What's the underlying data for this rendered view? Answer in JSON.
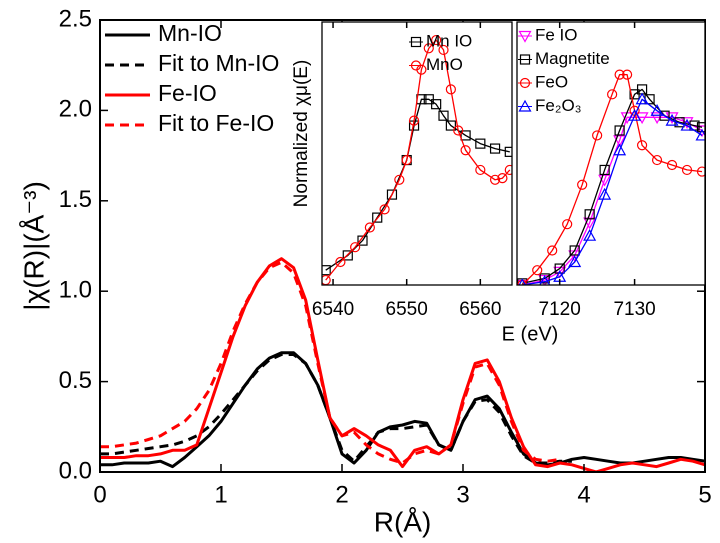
{
  "chart_data": [
    {
      "type": "line",
      "xlabel": "R(Å)",
      "ylabel": "|χ(R)|(Å⁻³)",
      "xlim": [
        0,
        5
      ],
      "xticks": [
        0,
        1,
        2,
        3,
        4,
        5
      ],
      "ylim": [
        0,
        2.5
      ],
      "yticks": [
        {
          "value": 0,
          "label": "0.0"
        },
        {
          "value": 0.5,
          "label": "0.5"
        },
        {
          "value": 1,
          "label": "1.0"
        },
        {
          "value": 1.5,
          "label": "1.5"
        },
        {
          "value": 2,
          "label": "2.0"
        },
        {
          "value": 2.5,
          "label": "2.5"
        }
      ],
      "legend": "upper-left",
      "x": [
        0,
        0.1,
        0.2,
        0.3,
        0.4,
        0.5,
        0.6,
        0.7,
        0.8,
        0.9,
        1,
        1.1,
        1.2,
        1.3,
        1.4,
        1.5,
        1.6,
        1.7,
        1.8,
        1.9,
        2,
        2.1,
        2.2,
        2.3,
        2.4,
        2.5,
        2.6,
        2.7,
        2.8,
        2.9,
        3,
        3.1,
        3.2,
        3.3,
        3.4,
        3.5,
        3.6,
        3.7,
        3.8,
        3.9,
        4,
        4.1,
        4.2,
        4.3,
        4.4,
        4.5,
        4.6,
        4.7,
        4.8,
        4.9,
        5
      ],
      "series": [
        {
          "name": "Mn-IO",
          "color": "#000000",
          "dash": false,
          "values": [
            0.04,
            0.04,
            0.05,
            0.05,
            0.05,
            0.06,
            0.03,
            0.08,
            0.14,
            0.2,
            0.28,
            0.38,
            0.48,
            0.57,
            0.63,
            0.66,
            0.66,
            0.6,
            0.48,
            0.3,
            0.1,
            0.05,
            0.12,
            0.22,
            0.25,
            0.26,
            0.28,
            0.27,
            0.15,
            0.12,
            0.28,
            0.4,
            0.42,
            0.35,
            0.22,
            0.1,
            0.05,
            0.04,
            0.05,
            0.07,
            0.08,
            0.07,
            0.06,
            0.05,
            0.05,
            0.06,
            0.07,
            0.08,
            0.08,
            0.07,
            0.06
          ]
        },
        {
          "name": "Fit to Mn-IO",
          "color": "#000000",
          "dash": true,
          "values": [
            0.1,
            0.1,
            0.11,
            0.12,
            0.13,
            0.14,
            0.15,
            0.17,
            0.2,
            0.25,
            0.32,
            0.4,
            0.48,
            0.56,
            0.62,
            0.65,
            0.65,
            0.6,
            0.48,
            0.3,
            0.12,
            0.06,
            0.14,
            0.22,
            0.24,
            0.24,
            0.25,
            0.26,
            0.15,
            0.12,
            0.28,
            0.39,
            0.4,
            0.33,
            0.2,
            0.09,
            0.05,
            0.05,
            0.06,
            0.06,
            null,
            null,
            null,
            null,
            null,
            null,
            null,
            null,
            null,
            null,
            null
          ]
        },
        {
          "name": "Fe-IO",
          "color": "#ff0000",
          "dash": false,
          "values": [
            0.08,
            0.08,
            0.08,
            0.09,
            0.09,
            0.1,
            0.12,
            0.12,
            0.15,
            0.35,
            0.55,
            0.75,
            0.92,
            1.05,
            1.14,
            1.18,
            1.13,
            0.95,
            0.62,
            0.3,
            0.2,
            0.24,
            0.2,
            0.15,
            0.12,
            0.03,
            0.12,
            0.14,
            0.1,
            0.15,
            0.4,
            0.6,
            0.62,
            0.5,
            0.3,
            0.14,
            0.04,
            0.03,
            0.05,
            0.04,
            0.02,
            0,
            0.02,
            0.04,
            0.05,
            0.04,
            0.03,
            0.05,
            0.07,
            0.06,
            0.04
          ]
        },
        {
          "name": "Fit to Fe-IO",
          "color": "#ff0000",
          "dash": true,
          "values": [
            0.14,
            0.14,
            0.15,
            0.16,
            0.18,
            0.2,
            0.24,
            0.28,
            0.35,
            0.45,
            0.6,
            0.78,
            0.93,
            1.05,
            1.13,
            1.16,
            1.1,
            0.92,
            0.6,
            0.3,
            0.2,
            0.22,
            0.15,
            0.1,
            0.07,
            0.05,
            0.1,
            0.12,
            0.1,
            0.15,
            0.38,
            0.58,
            0.6,
            0.48,
            0.28,
            0.12,
            0.07,
            0.06,
            0.07,
            null,
            null,
            null,
            null,
            null,
            null,
            null,
            null,
            null,
            null,
            null,
            null
          ]
        }
      ]
    },
    {
      "type": "line",
      "xlabel": "E (eV)",
      "ylabel": "Normalized χμ(E)",
      "xlim": [
        6538.5,
        6564.3
      ],
      "xticks": [
        6540,
        6550,
        6560
      ],
      "ylim": [
        0,
        1.6
      ],
      "legend": "upper-right",
      "series": [
        {
          "name": "Mn IO",
          "color": "#000000",
          "marker": "square",
          "x": [
            6539,
            6542,
            6544,
            6546,
            6548,
            6550,
            6551,
            6552,
            6553,
            6554,
            6555,
            6556,
            6558,
            6560,
            6562,
            6564
          ],
          "values": [
            0.09,
            0.18,
            0.27,
            0.41,
            0.55,
            0.76,
            0.97,
            1.13,
            1.13,
            1.1,
            1.03,
            0.97,
            0.91,
            0.86,
            0.83,
            0.81
          ]
        },
        {
          "name": "MnO",
          "color": "#ff0000",
          "marker": "circle",
          "x": [
            6539,
            6541,
            6543,
            6545,
            6547,
            6549,
            6550,
            6551,
            6552,
            6553,
            6554,
            6555,
            6556,
            6557,
            6558,
            6560,
            6562,
            6563,
            6564
          ],
          "values": [
            0.03,
            0.14,
            0.23,
            0.35,
            0.46,
            0.64,
            0.76,
            1,
            1.31,
            1.44,
            1.49,
            1.43,
            1.19,
            0.94,
            0.82,
            0.7,
            0.64,
            0.65,
            0.7
          ]
        }
      ]
    },
    {
      "type": "line",
      "xlim": [
        7114.3,
        7139.4
      ],
      "xticks": [
        7120,
        7130
      ],
      "ylim": [
        0,
        1.6
      ],
      "legend": "upper-left",
      "series": [
        {
          "name": "Fe IO",
          "color": "#ff00ff",
          "marker": "triangle-down",
          "x": [
            7115,
            7118,
            7120,
            7122,
            7124,
            7126,
            7128,
            7129,
            7131,
            7133,
            7135,
            7137,
            7139
          ],
          "values": [
            0,
            0.03,
            0.08,
            0.18,
            0.38,
            0.64,
            0.88,
            1.02,
            1.02,
            1.02,
            1.02,
            0.99,
            0.94
          ]
        },
        {
          "name": "Magnetite",
          "color": "#000000",
          "marker": "square",
          "x": [
            7115,
            7118,
            7120,
            7122,
            7124,
            7126,
            7128,
            7130,
            7131,
            7132,
            7134,
            7136,
            7138,
            7139
          ],
          "values": [
            0.01,
            0.04,
            0.1,
            0.21,
            0.43,
            0.7,
            0.94,
            1.16,
            1.19,
            1.13,
            1.03,
            0.99,
            0.97,
            0.96
          ]
        },
        {
          "name": "FeO",
          "color": "#ff0000",
          "marker": "circle",
          "x": [
            7115,
            7117,
            7119,
            7121,
            7123,
            7125,
            7127,
            7128,
            7129,
            7130,
            7131,
            7133,
            7135,
            7137,
            7139
          ],
          "values": [
            0,
            0.09,
            0.21,
            0.37,
            0.61,
            0.91,
            1.16,
            1.28,
            1.28,
            1.06,
            0.85,
            0.76,
            0.73,
            0.7,
            0.69
          ]
        },
        {
          "name": "Fe₂O₃",
          "color": "#0000ff",
          "marker": "triangle-up",
          "x": [
            7115,
            7118,
            7120,
            7122,
            7124,
            7126,
            7128,
            7130,
            7131,
            7133,
            7135,
            7137,
            7139
          ],
          "values": [
            0,
            0.02,
            0.05,
            0.14,
            0.3,
            0.55,
            0.82,
            1.03,
            1.13,
            1.06,
            1,
            0.97,
            0.91
          ]
        }
      ]
    }
  ]
}
